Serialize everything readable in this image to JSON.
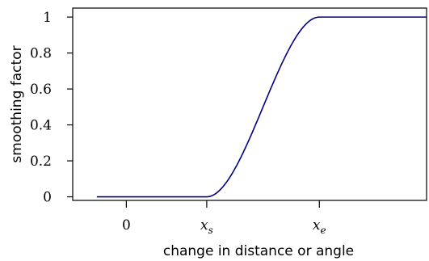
{
  "chart_data": {
    "type": "line",
    "title": "",
    "xlabel": "change in distance or angle",
    "ylabel": "smoothing factor",
    "xlim": [
      -1,
      5.6
    ],
    "ylim": [
      -0.02,
      1.05
    ],
    "x_ticks": [
      {
        "value": 0,
        "main": "0",
        "sub": "",
        "italic": false
      },
      {
        "value": 1.5,
        "main": "x",
        "sub": "s",
        "italic": true
      },
      {
        "value": 3.6,
        "main": "x",
        "sub": "e",
        "italic": true
      }
    ],
    "y_ticks": [
      {
        "value": 0,
        "label": "0"
      },
      {
        "value": 0.2,
        "label": "0.2"
      },
      {
        "value": 0.4,
        "label": "0.4"
      },
      {
        "value": 0.6,
        "label": "0.6"
      },
      {
        "value": 0.8,
        "label": "0.8"
      },
      {
        "value": 1,
        "label": "1"
      }
    ],
    "series": [
      {
        "color": "#000080",
        "curve": "smoothstep",
        "x_start": -0.55,
        "x_end": 5.6,
        "transition_start": 1.5,
        "transition_end": 3.6,
        "y_low": 0,
        "y_high": 1
      }
    ],
    "grid": false,
    "legend": "none"
  }
}
